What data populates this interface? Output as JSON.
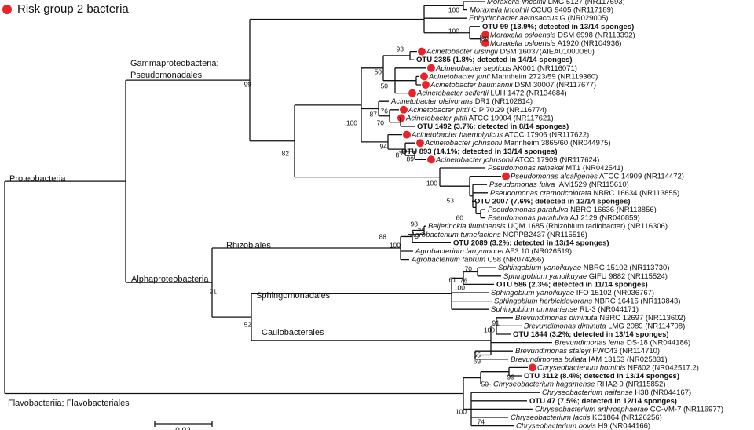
{
  "legend": {
    "label": "Risk group 2 bacteria"
  },
  "clades": [
    "Gammaproteobacteria;",
    "Pseudomonadales",
    "Proteobacteria",
    "Rhizobiales",
    "Alphaproteobacteria",
    "Sphingomonadales",
    "Caulobacterales",
    "Flavobacteriia; Flavobacteriales"
  ],
  "leaves": [
    {
      "species": "Moraxella lincolnii",
      "strain": "LMG 5127 (NR117693)"
    },
    {
      "species": "Moraxella lincolnii",
      "strain": "CCUG 9405 (NR117189)"
    },
    {
      "species": "Enhydrobacter aerosaccus",
      "strain": "G (NR029005)"
    },
    {
      "label": "OTU 99 (13.9%; detected in 13/14 sponges)"
    },
    {
      "species": "Moraxella osloensis",
      "strain": "DSM 6998 (NR113392)",
      "risk_group_2": true
    },
    {
      "species": "Moraxella osloensis",
      "strain": "A1920 (NR104936)",
      "risk_group_2": true
    },
    {
      "species": "Acinetobacter ursingii",
      "strain": "DSM 16037(AIEA01000080)",
      "risk_group_2": true
    },
    {
      "label": "OTU 2385 (1.8%; detected in 14/14 sponges)"
    },
    {
      "species": "Acinetobacter septicus",
      "strain": "AK001 (NR116071)",
      "risk_group_2": true
    },
    {
      "species": "Acinetobacter junii",
      "strain": "Mannheim 2723/59 (NR119360)",
      "risk_group_2": true
    },
    {
      "species": "Acinetobacter baumannii",
      "strain": "DSM 30007 (NR117677)",
      "risk_group_2": true
    },
    {
      "species": "Acinetobacter seifertii",
      "strain": "LUH 1472 (NR134684)",
      "risk_group_2": true
    },
    {
      "species": "Acinetobacter oleivorans",
      "strain": "DR1 (NR102814)"
    },
    {
      "species": "Acinetobacter pittii",
      "strain": "CIP 70.29 (NR116774)",
      "risk_group_2": true
    },
    {
      "species": "Acinetobacter pittii",
      "strain": "ATCC 19004 (NR117621)",
      "risk_group_2": true
    },
    {
      "label": "OTU 1492 (3.7%; detected in 8/14 sponges)"
    },
    {
      "species": "Acinetobacter haemolyticus",
      "strain": "ATCC 17906 (NR117622)",
      "risk_group_2": true
    },
    {
      "species": "Acinetobacter johnsonii",
      "strain": "Mannheim 3865/60 (NR044975)",
      "risk_group_2": true
    },
    {
      "label": "OTU 893 (14.1%; detected in 13/14 sponges)"
    },
    {
      "species": "Acinetobacter johnsonii",
      "strain": "ATCC 17909 (NR117624)",
      "risk_group_2": true
    },
    {
      "species": "Pseudomonas reinekei",
      "strain": "MT1 (NR042541)"
    },
    {
      "species": "Pseudomonas alcaligenes",
      "strain": "ATCC 14909 (NR114472)",
      "risk_group_2": true
    },
    {
      "species": "Pseudomonas fulva",
      "strain": "IAM1529 (NR115610)"
    },
    {
      "species": "Pseudomonas cremoricolorata",
      "strain": "NBRC 16634 (NR113855)"
    },
    {
      "label": "OTU 2007 (7.6%; detected in 12/14 sponges)"
    },
    {
      "species": "Pseudomonas parafulva",
      "strain": "NBRC 16636 (NR113856)"
    },
    {
      "species": "Pseudomonas parafulva",
      "strain": "AJ 2129 (NR040859)"
    },
    {
      "species": "Beijerinckia fluminensis",
      "strain": "UQM 1685 (Rhizobium radiobacter) (NR116306)"
    },
    {
      "species": "Agrobacterium tumefaciens",
      "strain": "NCPPB2437 (NR115516)"
    },
    {
      "label": "OTU 2089 (3.2%; detected in 13/14 sponges)"
    },
    {
      "species": "Agrobacterium larrymoorei",
      "strain": "AF3.10 (NR026519)"
    },
    {
      "species": "Agrobacterium fabrum",
      "strain": "C58 (NR074266)"
    },
    {
      "species": "Sphingobium yanoikuyae",
      "strain": "NBRC 15102 (NR113730)"
    },
    {
      "species": "Sphingobium yanoikuyae",
      "strain": "GIFU 9882 (NR115524)"
    },
    {
      "label": "OTU 586 (2.3%; detected in 11/14 sponges)"
    },
    {
      "species": "Sphingobium yanoikuyae",
      "strain": "IFO 15102 (NR036767)"
    },
    {
      "species": "Sphingobium herbicidovorans",
      "strain": "NBRC 16415 (NR113843)"
    },
    {
      "species": "Sphingobium ummariense",
      "strain": "RL-3 (NR044171)"
    },
    {
      "species": "Brevundimonas diminuta",
      "strain": "NBRC 12697 (NR113602)"
    },
    {
      "species": "Brevundimonas diminuta",
      "strain": "LMG 2089 (NR114708)"
    },
    {
      "label": "OTU 1844 (3.2%; detected in 13/14 sponges)"
    },
    {
      "species": "Brevundimonas lenta",
      "strain": "DS-18 (NR044186)"
    },
    {
      "species": "Brevundimonas staleyi",
      "strain": "FWC43 (NR114710)"
    },
    {
      "species": "Brevundimonas bullata",
      "strain": "IAM 13153 (NR025831)"
    },
    {
      "species": "Chryseobacterium hominis",
      "strain": "NF802 (NR042517.2)",
      "risk_group_2": true
    },
    {
      "label": "OTU 3112 (8.4%; detected in 13/14 sponges)"
    },
    {
      "species": "Chryseobacterium hagamense",
      "strain": "RHA2-9 (NR115852)"
    },
    {
      "species": "Chryseobacterium haifense",
      "strain": "H38 (NR044167)"
    },
    {
      "label": "OTU 47 (7.5%; detected in 12/14 sponges)"
    },
    {
      "species": "Chryseobacterium arthrosphaerae",
      "strain": "CC-VM-7 (NR116977)"
    },
    {
      "species": "Chryseobacterium lactis",
      "strain": "KC1864 (NR126256)"
    },
    {
      "species": "Chryseobacterium bovis",
      "strain": "H9 (NR044166)"
    }
  ],
  "bootstrap": [
    100,
    100,
    89,
    93,
    50,
    50,
    87,
    76,
    70,
    100,
    94,
    87,
    89,
    99,
    82,
    100,
    53,
    60,
    98,
    75,
    88,
    100,
    91,
    70,
    61,
    76,
    100,
    52,
    91,
    100,
    55,
    69,
    99,
    50,
    100,
    74
  ],
  "scale_bar": 0.02
}
